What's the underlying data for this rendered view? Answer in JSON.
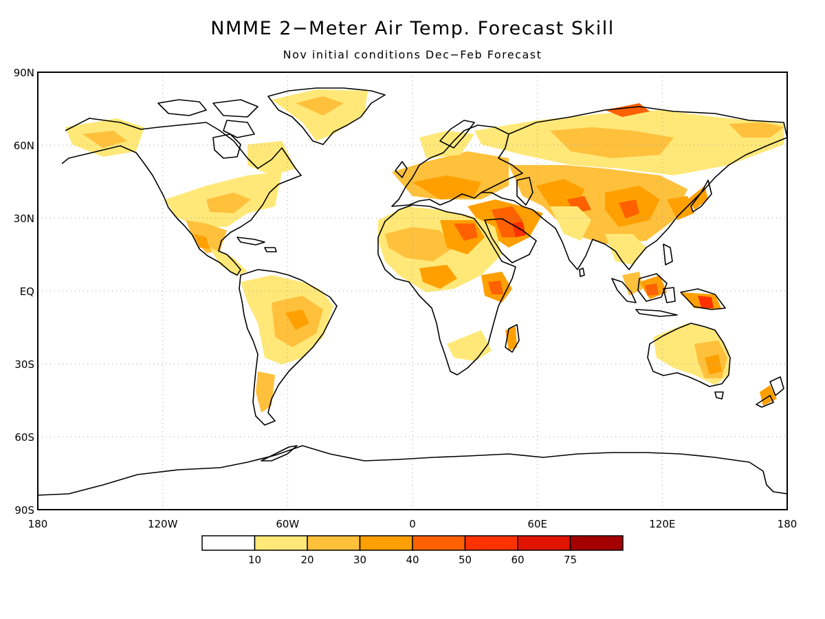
{
  "title": "NMME 2−Meter Air Temp. Forecast Skill",
  "subtitle": "Nov initial conditions  Dec−Feb Forecast",
  "map": {
    "lat_labels": [
      "90N",
      "60N",
      "30N",
      "EQ",
      "30S",
      "60S",
      "90S"
    ],
    "lon_labels": [
      "180",
      "120W",
      "60W",
      "0",
      "60E",
      "120E",
      "180"
    ],
    "grid_lines": "dotted"
  },
  "colorbar": {
    "colors": [
      "#ffffff",
      "#ffe878",
      "#ffc03c",
      "#ffa000",
      "#ff6000",
      "#ff3200",
      "#e11400",
      "#a50000"
    ],
    "tick_labels": [
      "10",
      "20",
      "30",
      "40",
      "50",
      "60",
      "75"
    ]
  }
}
